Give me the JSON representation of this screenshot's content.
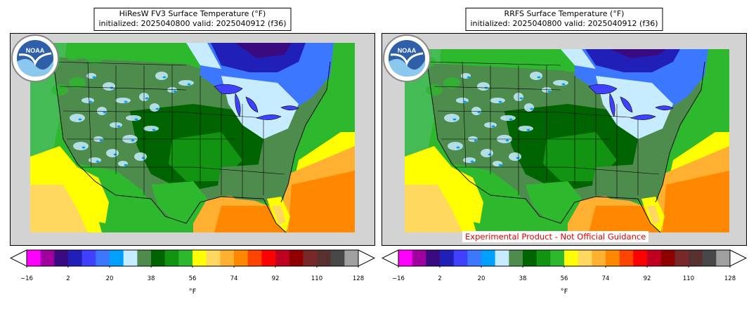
{
  "panels": [
    {
      "title_line1": "HiResW FV3 Surface Temperature (°F)",
      "title_line2": "initialized: 2025040800 valid: 2025040912 (f36)",
      "logo": "NOAA",
      "disclaimer": ""
    },
    {
      "title_line1": "RRFS Surface Temperature (°F)",
      "title_line2": "initialized: 2025040800 valid: 2025040912 (f36)",
      "logo": "NOAA",
      "disclaimer": "Experimental Product - Not Official Guidance"
    }
  ],
  "colorbar": {
    "colors": [
      "#ff00ff",
      "#a000a0",
      "#3a0a80",
      "#2020b8",
      "#4040ff",
      "#3c78ff",
      "#00a0ff",
      "#c8ecff",
      "#4e8c4e",
      "#006400",
      "#129412",
      "#2eb82e",
      "#ffff00",
      "#ffd860",
      "#ffb030",
      "#ff8800",
      "#ff4400",
      "#ff0000",
      "#c00020",
      "#900000",
      "#782828",
      "#583030",
      "#484848",
      "#a0a0a0"
    ],
    "tick_labels": [
      "−16",
      "2",
      "20",
      "38",
      "56",
      "74",
      "92",
      "110",
      "128"
    ],
    "unit": "°F"
  },
  "map": {
    "projection": "CONUS Lambert Conformal",
    "ocean_color": "#d3d3d3",
    "extended_triangles": true
  }
}
